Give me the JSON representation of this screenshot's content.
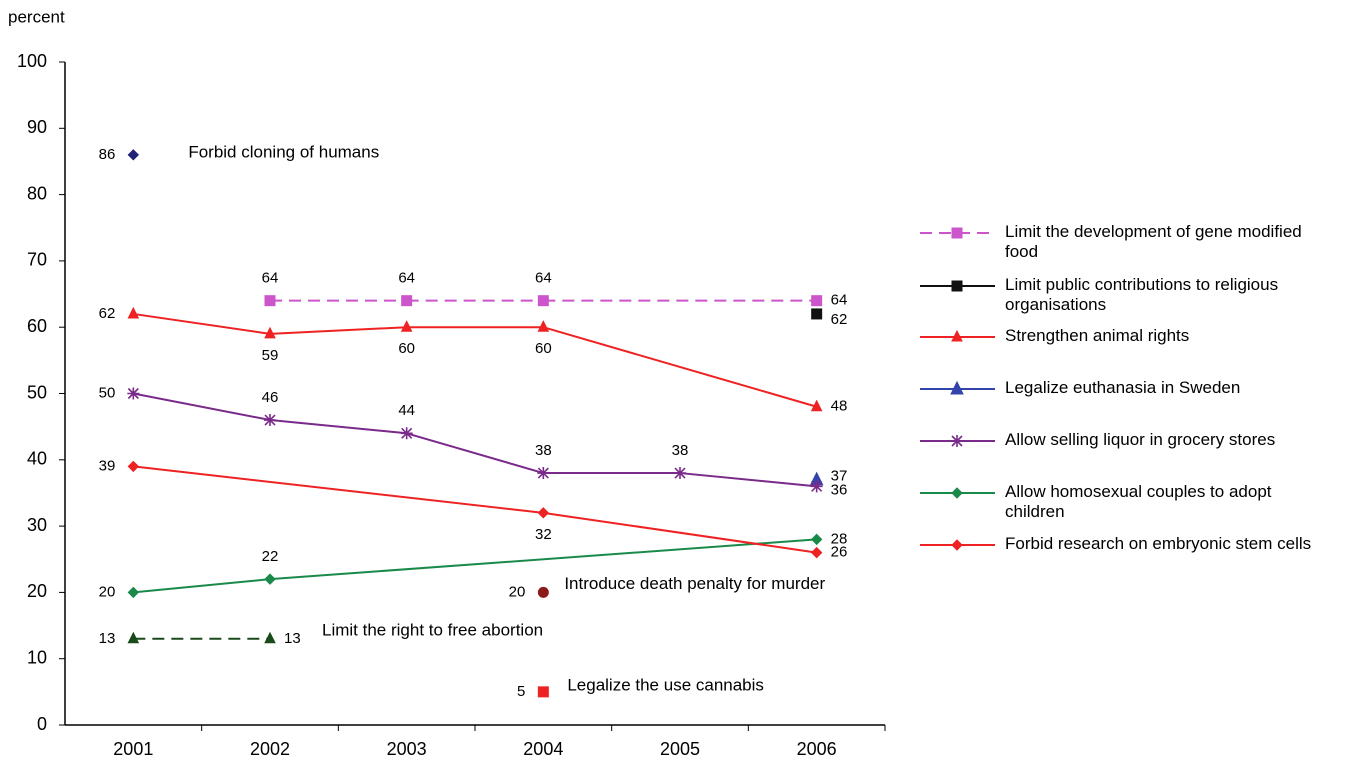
{
  "chart_data": {
    "type": "line",
    "y_label": "percent",
    "categories": [
      "2001",
      "2002",
      "2003",
      "2004",
      "2005",
      "2006"
    ],
    "ylim": [
      0,
      100
    ],
    "yticks": [
      0,
      10,
      20,
      30,
      40,
      50,
      60,
      70,
      80,
      90,
      100
    ],
    "grid": false,
    "legend": "right",
    "series": [
      {
        "name": "Limit the development of gene modified food",
        "color": "#cc55cc",
        "marker": "square",
        "dashed": true,
        "values": [
          null,
          64,
          64,
          64,
          null,
          64
        ]
      },
      {
        "name": "Limit public contributions to religious organisations",
        "color": "#111111",
        "marker": "square",
        "dashed": false,
        "values": [
          null,
          null,
          null,
          null,
          null,
          62
        ]
      },
      {
        "name": "Strengthen animal rights",
        "color": "#ee2222",
        "marker": "triangle",
        "dashed": false,
        "values": [
          62,
          59,
          60,
          60,
          null,
          48
        ]
      },
      {
        "name": "Legalize euthanasia in Sweden",
        "color": "#3344aa",
        "marker": "triangle",
        "dashed": false,
        "values": [
          null,
          null,
          null,
          null,
          null,
          37
        ]
      },
      {
        "name": "Allow selling liquor in grocery stores",
        "color": "#7a2a8a",
        "marker": "star",
        "dashed": false,
        "values": [
          50,
          46,
          44,
          38,
          38,
          36
        ]
      },
      {
        "name": "Allow homosexual couples to adopt children",
        "color": "#1a8a4a",
        "marker": "diamond",
        "dashed": false,
        "values": [
          20,
          22,
          null,
          null,
          null,
          28
        ]
      },
      {
        "name": "Forbid research on embryonic stem cells",
        "color": "#ee2222",
        "marker": "diamond",
        "dashed": false,
        "values": [
          39,
          null,
          null,
          32,
          null,
          26
        ]
      }
    ],
    "unlisted_series": [
      {
        "name": "Forbid cloning of humans",
        "color": "#222277",
        "marker": "diamond",
        "dashed": false,
        "values": [
          86,
          null,
          null,
          null,
          null,
          null
        ]
      },
      {
        "name": "Introduce death penalty for murder",
        "color": "#8b1a1a",
        "marker": "circle",
        "dashed": false,
        "values": [
          null,
          null,
          null,
          20,
          null,
          null
        ]
      },
      {
        "name": "Limit the right to free abortion",
        "color": "#1a4a1a",
        "marker": "triangle",
        "dashed": true,
        "values": [
          13,
          13,
          null,
          null,
          null,
          null
        ]
      },
      {
        "name": "Legalize the use cannabis",
        "color": "#ee2222",
        "marker": "square",
        "dashed": false,
        "values": [
          null,
          null,
          null,
          5,
          null,
          null
        ]
      }
    ]
  }
}
